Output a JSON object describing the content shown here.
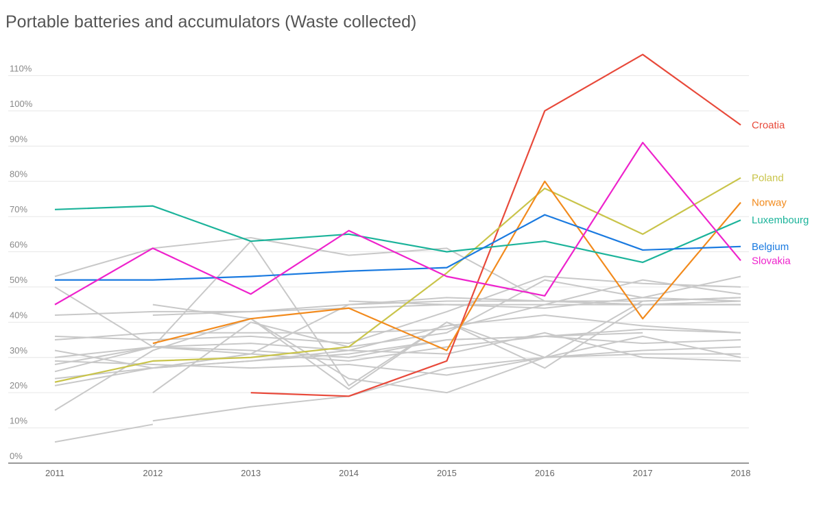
{
  "chart_data": {
    "type": "line",
    "title": "Portable batteries and accumulators (Waste collected)",
    "x": [
      2011,
      2012,
      2013,
      2014,
      2015,
      2016,
      2017,
      2018
    ],
    "xlim": [
      2011,
      2018
    ],
    "xticks": [
      2011,
      2012,
      2013,
      2014,
      2015,
      2016,
      2017,
      2018
    ],
    "ylim": [
      0,
      120
    ],
    "yticks": [
      {
        "value": 0,
        "label": "0%"
      },
      {
        "value": 10,
        "label": "10%"
      },
      {
        "value": 20,
        "label": "20%"
      },
      {
        "value": 30,
        "label": "30%"
      },
      {
        "value": 40,
        "label": "40%"
      },
      {
        "value": 50,
        "label": "50%"
      },
      {
        "value": 60,
        "label": "60%"
      },
      {
        "value": 70,
        "label": "70%"
      },
      {
        "value": 80,
        "label": "80%"
      },
      {
        "value": 90,
        "label": "90%"
      },
      {
        "value": 100,
        "label": "100%"
      },
      {
        "value": 110,
        "label": "110%"
      }
    ],
    "grid": true,
    "series": [
      {
        "color": "#c8c8c8",
        "values": [
          53,
          61,
          64,
          59,
          61,
          46,
          46,
          47
        ]
      },
      {
        "color": "#c8c8c8",
        "values": [
          50,
          33,
          63,
          22,
          40,
          30,
          46,
          47
        ]
      },
      {
        "color": "#c8c8c8",
        "values": [
          36,
          35,
          36,
          34,
          43,
          53,
          51,
          50
        ]
      },
      {
        "color": "#c8c8c8",
        "values": [
          35,
          37,
          37,
          37,
          38,
          45,
          52,
          48
        ]
      },
      {
        "color": "#c8c8c8",
        "values": [
          30,
          33,
          31,
          29,
          33,
          36,
          34,
          35
        ]
      },
      {
        "color": "#c8c8c8",
        "values": [
          29,
          28,
          27,
          28,
          25,
          30,
          31,
          31
        ]
      },
      {
        "color": "#c8c8c8",
        "values": [
          26,
          33,
          32,
          30,
          35,
          36,
          38,
          37
        ]
      },
      {
        "color": "#c8c8c8",
        "values": [
          24,
          27,
          29,
          32,
          39,
          42,
          39,
          37
        ]
      },
      {
        "color": "#c8c8c8",
        "values": [
          22,
          27,
          31,
          45,
          47,
          46,
          45,
          45
        ]
      },
      {
        "color": "#c8c8c8",
        "values": [
          15,
          32,
          41,
          21,
          40,
          27,
          45,
          46
        ]
      },
      {
        "color": "#c8c8c8",
        "values": [
          6,
          11,
          null,
          null,
          null,
          null,
          null,
          null
        ]
      },
      {
        "color": "#c8c8c8",
        "values": [
          null,
          12,
          16,
          19,
          27,
          30,
          32,
          33
        ]
      },
      {
        "color": "#c8c8c8",
        "values": [
          42,
          43,
          43,
          44,
          45,
          45,
          45,
          45
        ]
      },
      {
        "color": "#c8c8c8",
        "values": [
          null,
          42,
          43,
          45,
          46,
          46,
          45,
          45
        ]
      },
      {
        "color": "#c8c8c8",
        "values": [
          null,
          45,
          41,
          24,
          20,
          30,
          36,
          30
        ]
      },
      {
        "color": "#c8c8c8",
        "values": [
          32,
          27,
          29,
          31,
          35,
          36,
          37,
          null
        ]
      },
      {
        "color": "#c8c8c8",
        "values": [
          null,
          20,
          40,
          33,
          37,
          52,
          47,
          46
        ]
      },
      {
        "color": "#c8c8c8",
        "values": [
          null,
          null,
          null,
          46,
          45,
          44,
          47,
          53
        ]
      },
      {
        "color": "#c8c8c8",
        "values": [
          28,
          33,
          34,
          32,
          31,
          37,
          30,
          29
        ]
      },
      {
        "name": "Croatia",
        "color": "#e8493a",
        "values": [
          null,
          null,
          20,
          19,
          29,
          100,
          116,
          96
        ]
      },
      {
        "name": "Poland",
        "color": "#c9c44a",
        "values": [
          23,
          29,
          30,
          33,
          54,
          78,
          65,
          81
        ]
      },
      {
        "name": "Norway",
        "color": "#f28a1c",
        "values": [
          null,
          34,
          41,
          44,
          32,
          80,
          41,
          74
        ]
      },
      {
        "name": "Luxembourg",
        "color": "#1bb39a",
        "values": [
          72,
          73,
          63,
          65,
          60,
          63,
          57,
          69
        ]
      },
      {
        "name": "Belgium",
        "color": "#1a7ae0",
        "values": [
          52,
          52,
          53,
          54.5,
          55.5,
          70.5,
          60.5,
          61.5
        ]
      },
      {
        "name": "Slovakia",
        "color": "#ee22cc",
        "values": [
          45,
          61,
          48,
          66,
          53,
          47.5,
          91,
          57.5
        ]
      }
    ]
  }
}
